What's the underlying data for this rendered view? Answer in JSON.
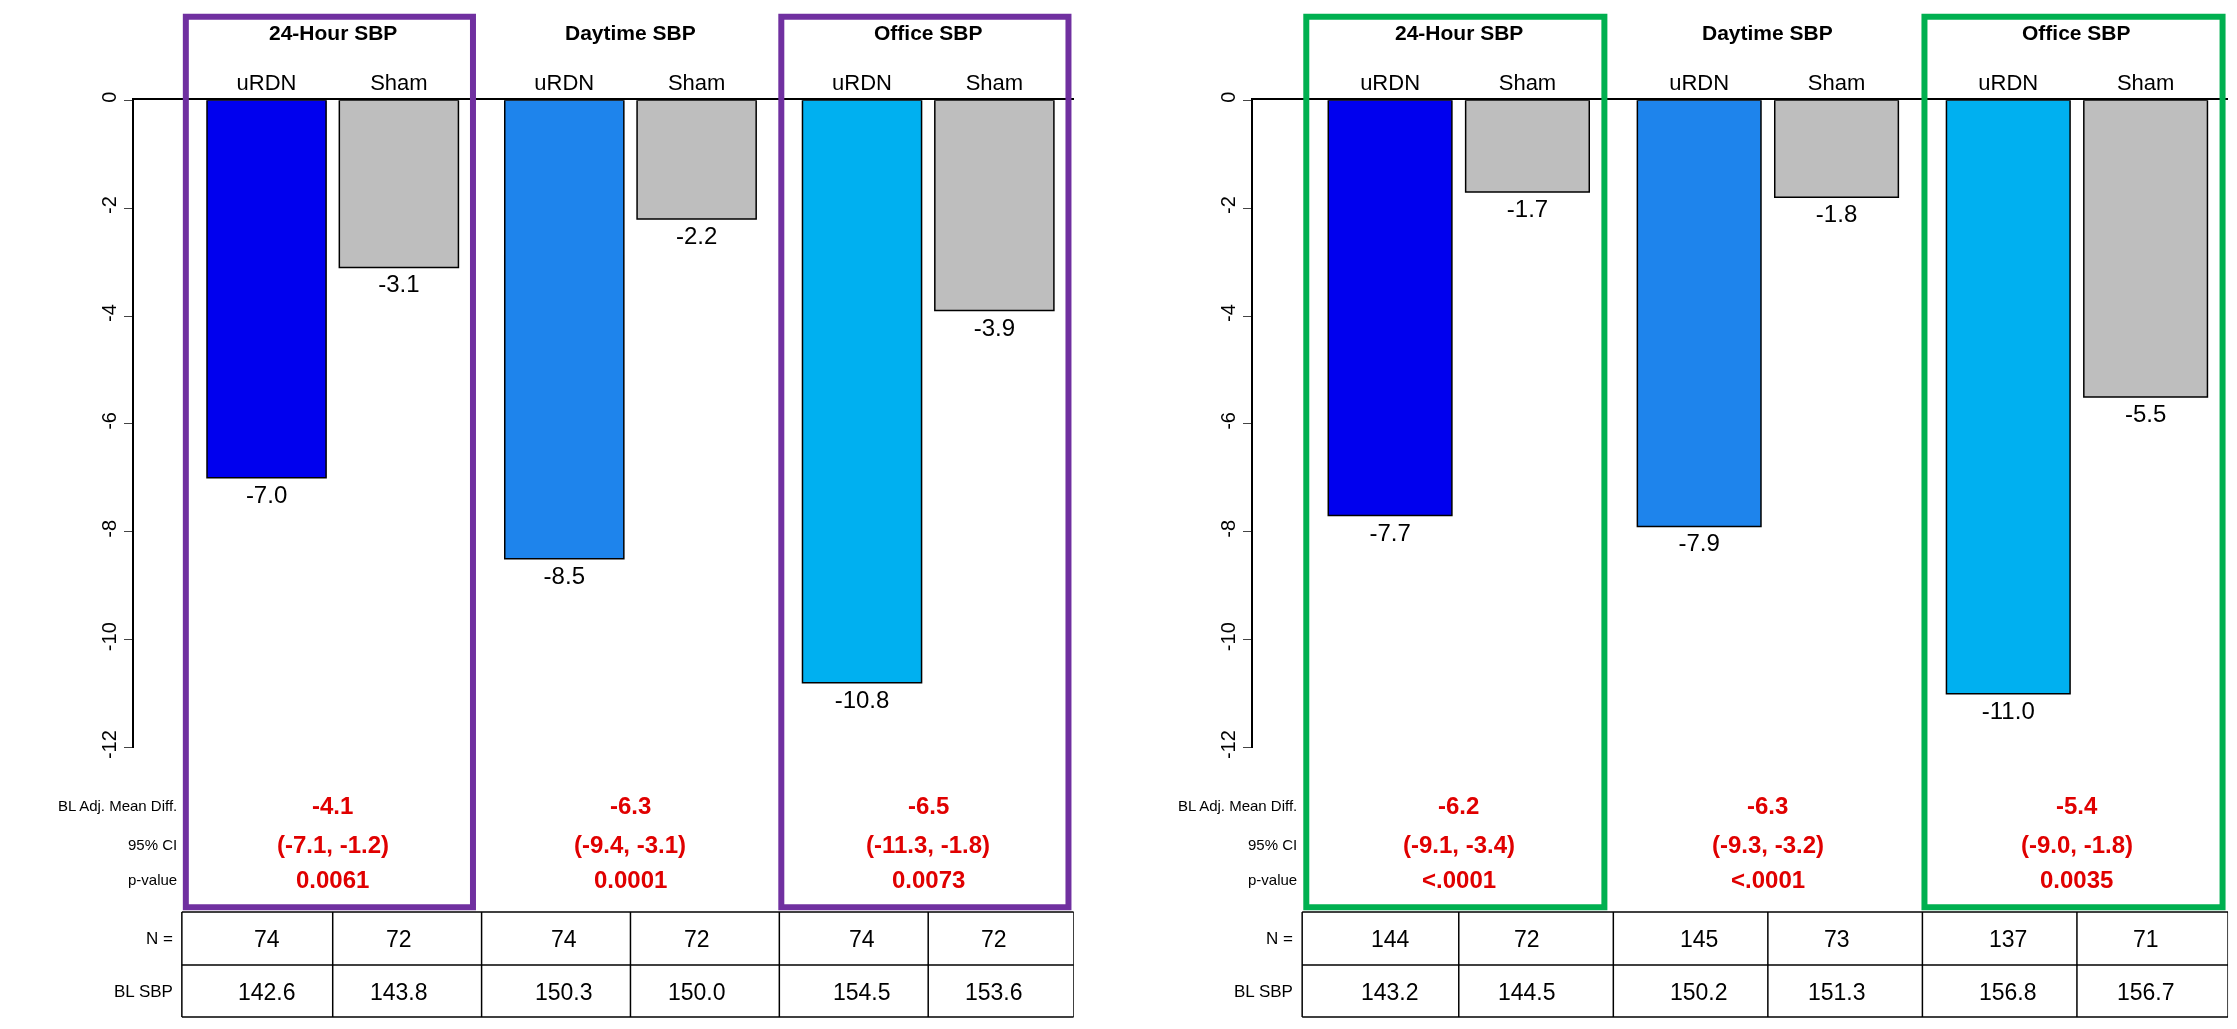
{
  "chart_data": [
    {
      "type": "bar",
      "categories": [
        "uRDN",
        "Sham",
        "uRDN",
        "Sham",
        "uRDN",
        "Sham"
      ],
      "values": [
        -7.0,
        -3.1,
        -8.5,
        -2.2,
        -10.8,
        -3.9
      ],
      "value_labels": [
        "-7.0",
        "-3.1",
        "-8.5",
        "-2.2",
        "-10.8",
        "-3.9"
      ],
      "colors": [
        "#0000ee",
        "#bebebe",
        "#1e84ec",
        "#bebebe",
        "#00b0f0",
        "#bebebe"
      ],
      "ylim": [
        -12,
        0
      ],
      "yticks": [
        0,
        -2,
        -4,
        -6,
        -8,
        -10,
        -12
      ],
      "annotations": [
        "24-Hour SBP",
        "Daytime SBP",
        "Office SBP",
        "BL Adj. Mean Diff.",
        "95% CI",
        "p-value",
        "-4.1",
        "(-7.1, -1.2)",
        "0.0061",
        "-6.3",
        "(-9.4, -3.1)",
        "0.0001",
        "-6.5",
        "(-11.3, -1.8)",
        "0.0073",
        "N =",
        "74",
        "72",
        "74",
        "72",
        "74",
        "72",
        "BL SBP",
        "142.6",
        "143.8",
        "150.3",
        "150.0",
        "154.5",
        "153.6"
      ]
    },
    {
      "type": "bar",
      "categories": [
        "uRDN",
        "Sham",
        "uRDN",
        "Sham",
        "uRDN",
        "Sham"
      ],
      "values": [
        -7.7,
        -1.7,
        -7.9,
        -1.8,
        -11.0,
        -5.5
      ],
      "value_labels": [
        "-7.7",
        "-1.7",
        "-7.9",
        "-1.8",
        "-11.0",
        "-5.5"
      ],
      "colors": [
        "#0000ee",
        "#bebebe",
        "#1e84ec",
        "#bebebe",
        "#00b0f0",
        "#bebebe"
      ],
      "ylim": [
        -12,
        0
      ],
      "yticks": [
        0,
        -2,
        -4,
        -6,
        -8,
        -10,
        -12
      ],
      "annotations": [
        "24-Hour SBP",
        "Daytime SBP",
        "Office SBP",
        "BL Adj. Mean Diff.",
        "95% CI",
        "p-value",
        "-6.2",
        "(-9.1, -3.4)",
        "<.0001",
        "-6.3",
        "(-9.3, -3.2)",
        "<.0001",
        "-5.4",
        "(-9.0, -1.8)",
        "0.0035",
        "N =",
        "144",
        "72",
        "145",
        "73",
        "137",
        "71",
        "BL SBP",
        "143.2",
        "144.5",
        "150.2",
        "151.3",
        "156.8",
        "156.7"
      ]
    }
  ]
}
